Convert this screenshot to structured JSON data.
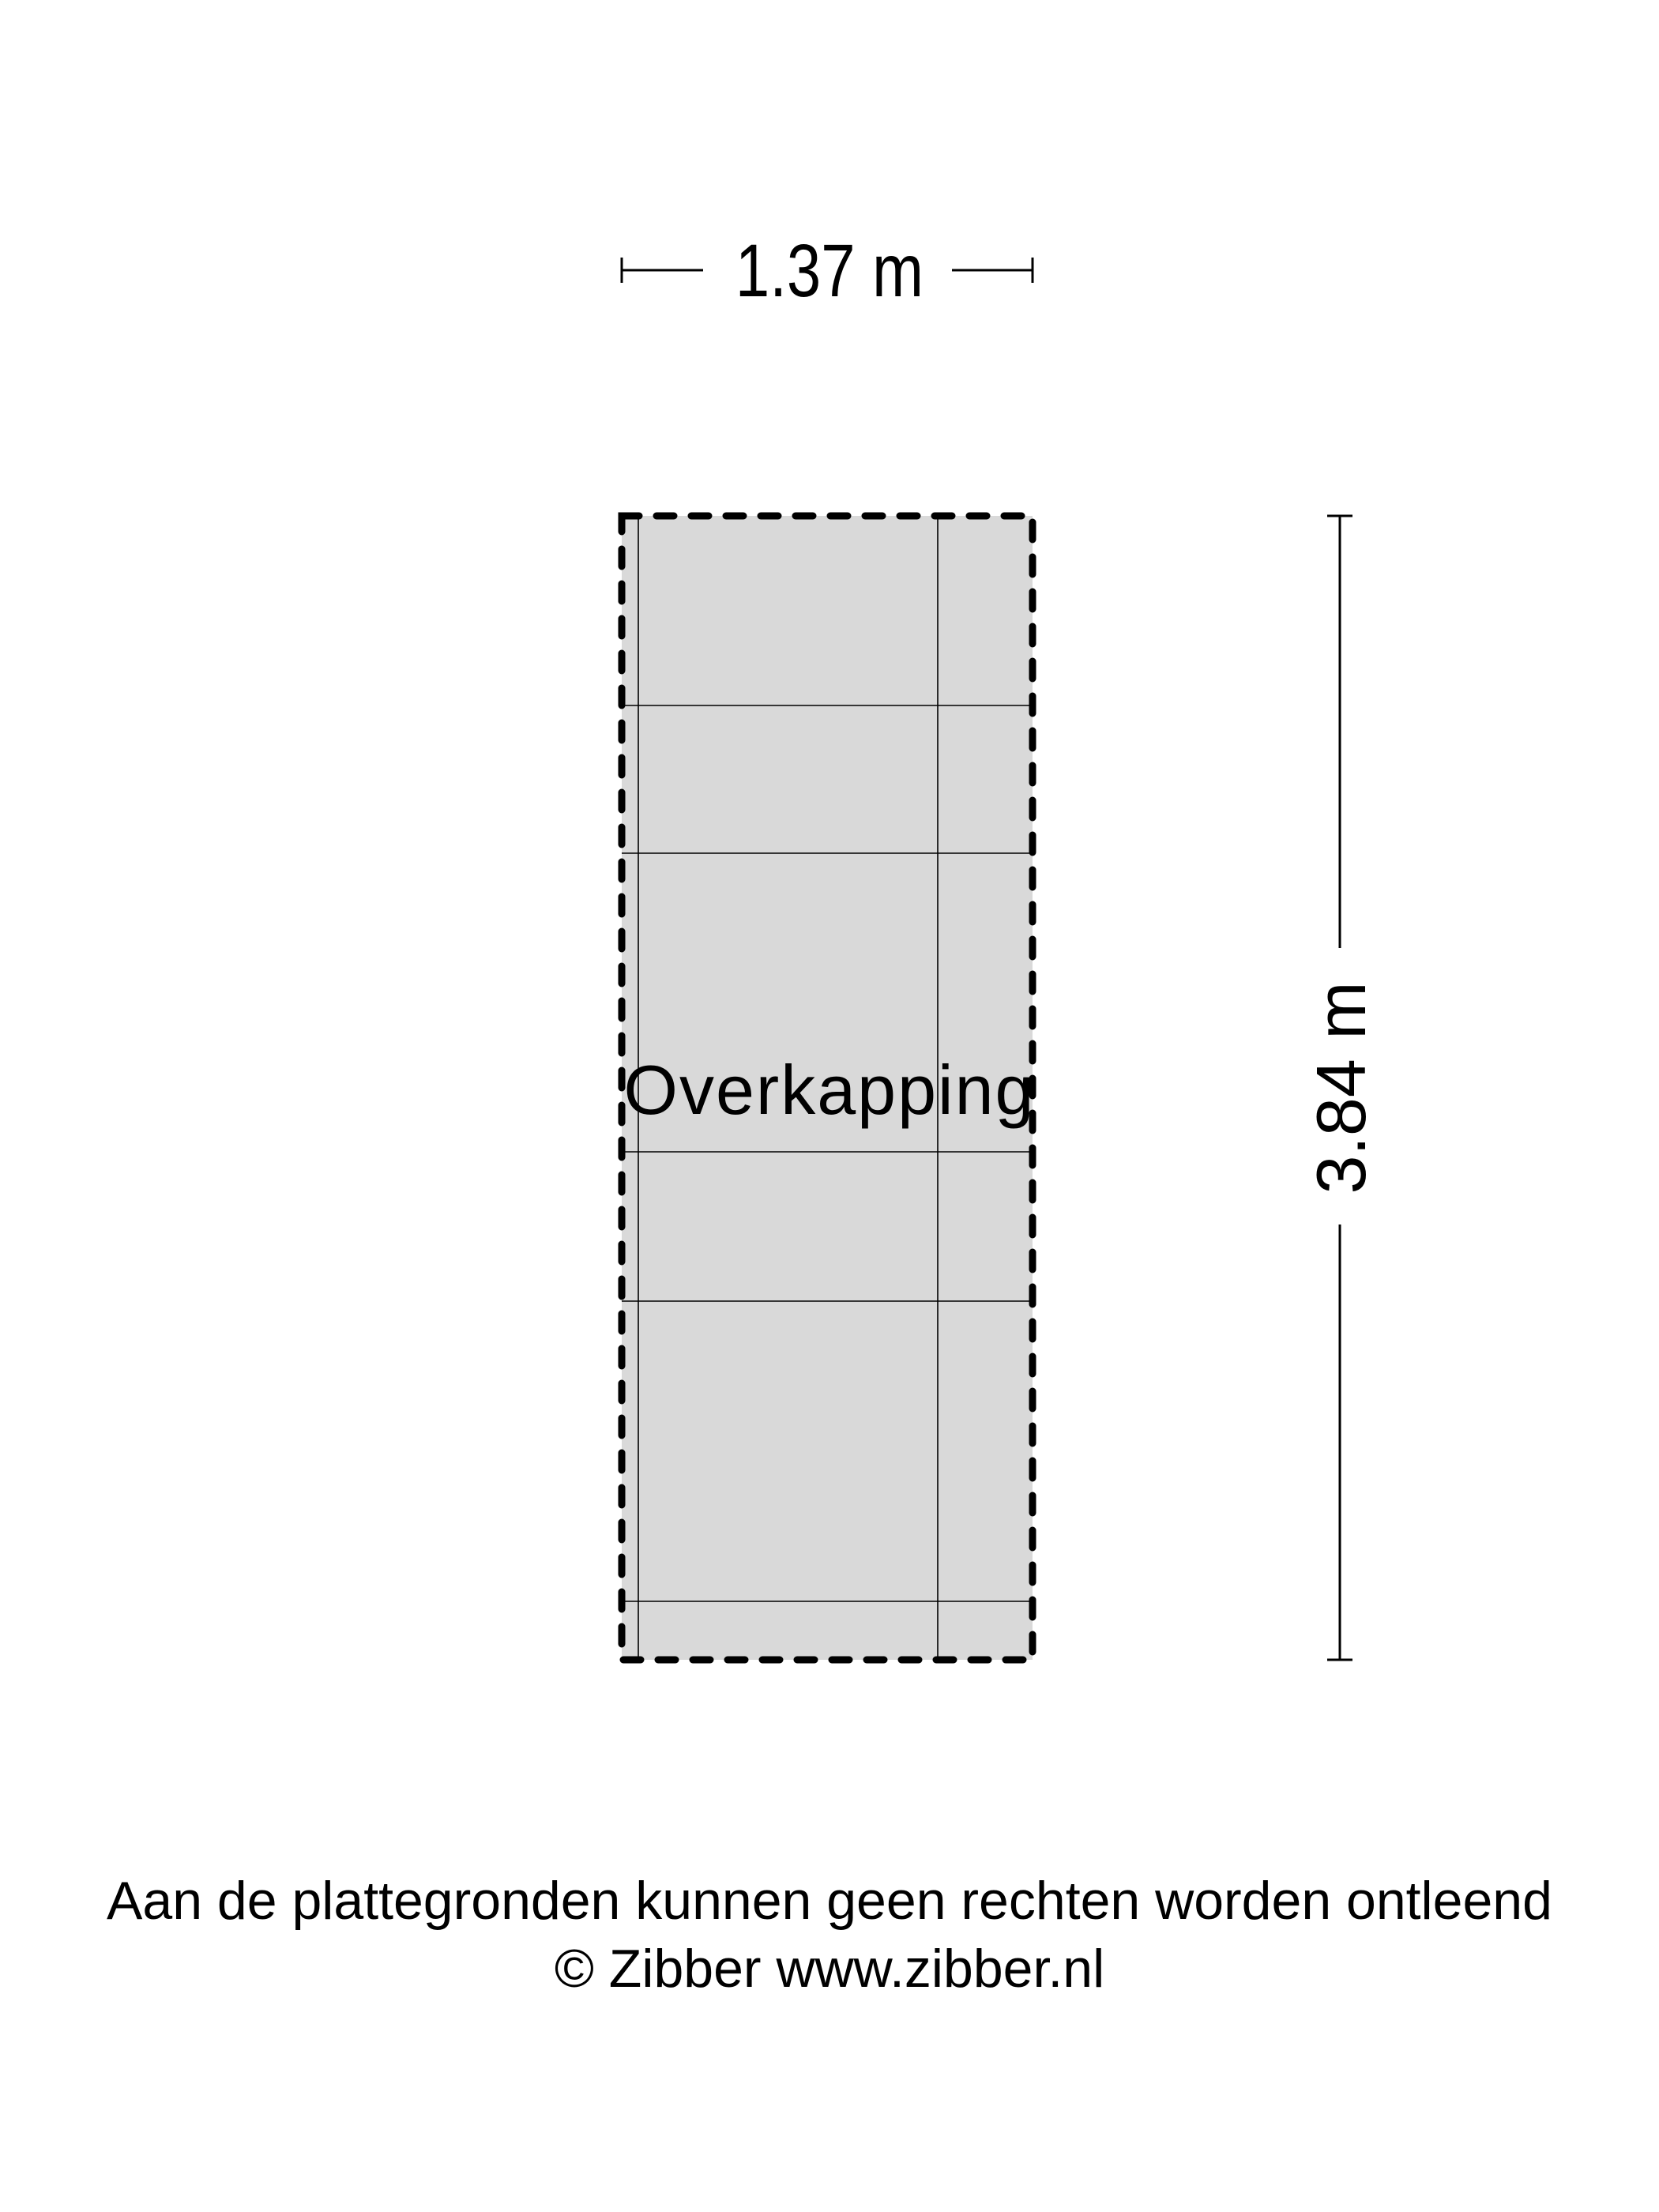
{
  "plan": {
    "room_label": "Overkapping",
    "width_label": "1.37 m",
    "length_label": "3.84 m",
    "fill_color": "#d9d9d9",
    "line_color": "#000000"
  },
  "footer": {
    "disclaimer": "Aan de plattegronden kunnen geen rechten worden ontleend",
    "copyright": "© Zibber www.zibber.nl"
  }
}
